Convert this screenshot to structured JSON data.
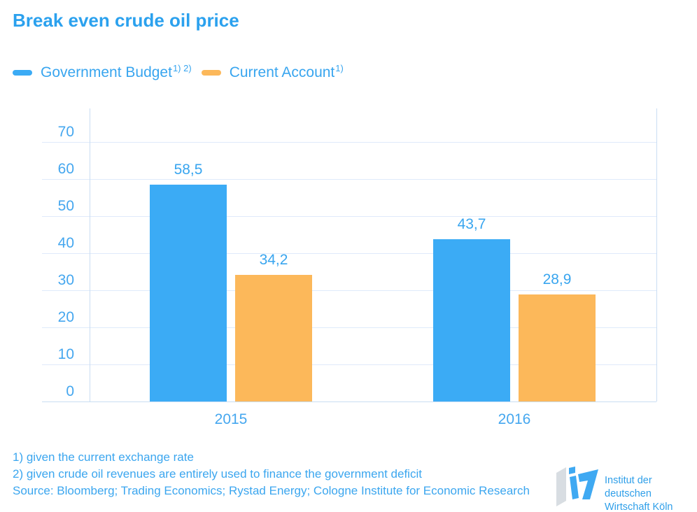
{
  "title": "Break even crude oil price",
  "legend": [
    {
      "label": "Government Budget",
      "sup": "1) 2)",
      "color": "#3babf5"
    },
    {
      "label": "Current Account",
      "sup": "1)",
      "color": "#fcb85a"
    }
  ],
  "chart_data": {
    "type": "bar",
    "categories": [
      "2015",
      "2016"
    ],
    "series": [
      {
        "name": "Government Budget",
        "color": "#3babf5",
        "values": [
          58.5,
          43.7
        ]
      },
      {
        "name": "Current Account",
        "color": "#fcb85a",
        "values": [
          34.2,
          28.9
        ]
      }
    ],
    "value_labels": [
      [
        "58,5",
        "43,7"
      ],
      [
        "34,2",
        "28,9"
      ]
    ],
    "yticks": [
      0,
      10,
      20,
      30,
      40,
      50,
      60,
      70
    ],
    "ylim": [
      0,
      75
    ],
    "xlabel": "",
    "ylabel": "",
    "grid": true,
    "legend_position": "top"
  },
  "footnotes": [
    "1) given the current exchange rate",
    "2) given crude oil revenues are entirely used to finance the government deficit"
  ],
  "source": "Source: Bloomberg; Trading Economics; Rystad Energy; Cologne Institute for Economic Research",
  "logo": {
    "line1": "Institut der deutschen",
    "line2": "Wirtschaft Köln"
  },
  "colors": {
    "title_blue": "#2ba1ee",
    "text_blue": "#38a5ef",
    "tick_blue": "#45a7ef",
    "bar_blue": "#3babf5",
    "bar_orange": "#fcb85a",
    "gridline": "#dfeafa",
    "axis_line": "#c9ddf3",
    "logo_gray": "#d8dde2"
  }
}
